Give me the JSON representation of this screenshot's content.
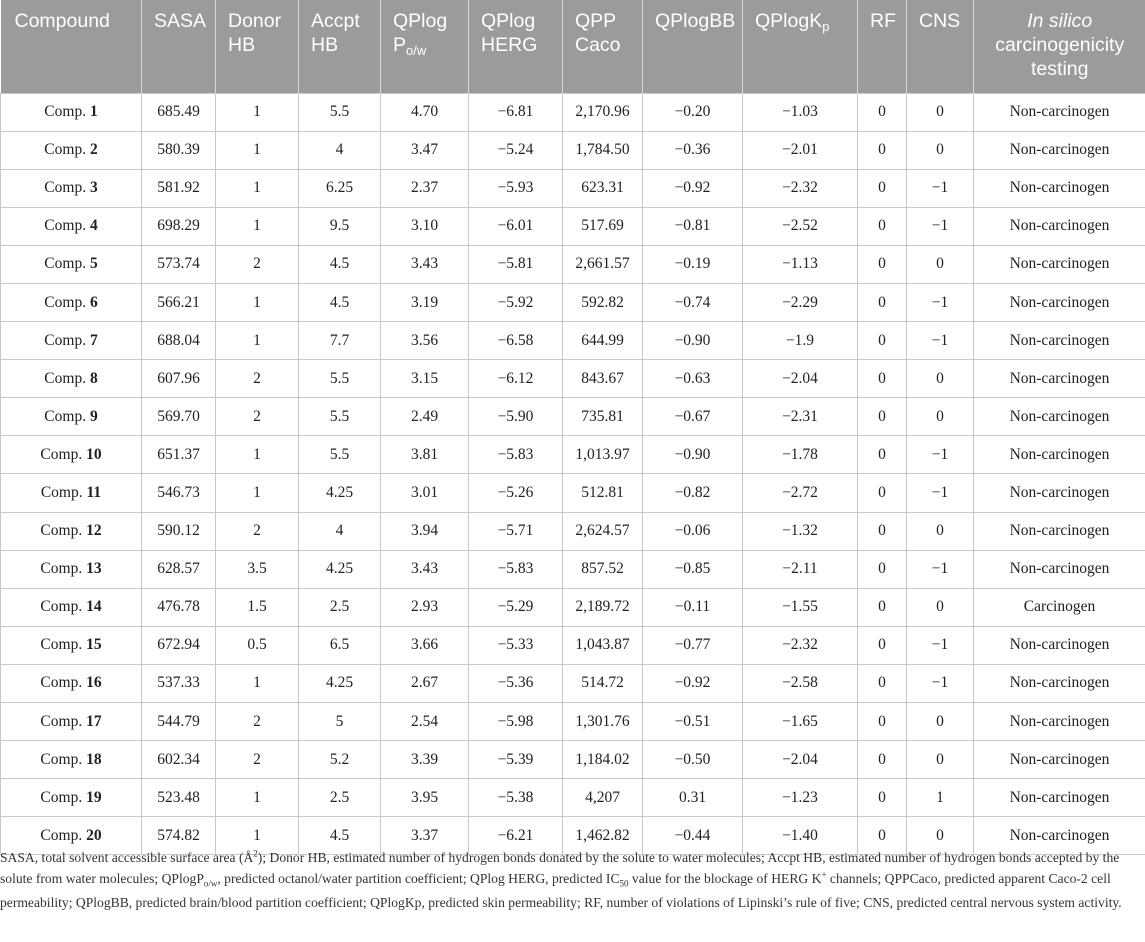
{
  "columns": [
    {
      "line1": "Compound",
      "line2": "",
      "sub": "",
      "after_sub": "",
      "line3": ""
    },
    {
      "line1": "SASA",
      "line2": "",
      "sub": "",
      "after_sub": "",
      "line3": ""
    },
    {
      "line1": "Donor",
      "line2": "HB",
      "sub": "",
      "after_sub": "",
      "line3": ""
    },
    {
      "line1": "Accpt",
      "line2": "HB",
      "sub": "",
      "after_sub": "",
      "line3": ""
    },
    {
      "line1": "QPlog",
      "line2": "P",
      "sub": "o/w",
      "after_sub": "",
      "line3": ""
    },
    {
      "line1": "QPlog",
      "line2": "HERG",
      "sub": "",
      "after_sub": "",
      "line3": ""
    },
    {
      "line1": "QPP",
      "line2": "Caco",
      "sub": "",
      "after_sub": "",
      "line3": ""
    },
    {
      "line1": "QPlogBB",
      "line2": "",
      "sub": "",
      "after_sub": "",
      "line3": ""
    },
    {
      "line1": "QPlogK",
      "line2": "",
      "sub": "p",
      "after_sub": "",
      "line3": ""
    },
    {
      "line1": "RF",
      "line2": "",
      "sub": "",
      "after_sub": "",
      "line3": ""
    },
    {
      "line1": "CNS",
      "line2": "",
      "sub": "",
      "after_sub": "",
      "line3": ""
    },
    {
      "line1": "In silico",
      "line2": "carcinogenicity",
      "sub": "",
      "after_sub": "",
      "line3": "testing"
    }
  ],
  "rows": [
    {
      "prefix": "Comp. ",
      "num": "1",
      "sasa": "685.49",
      "donor": "1",
      "accpt": "5.5",
      "qplogpow": "4.70",
      "qplogherg": "−6.81",
      "qppcaco": "2,170.96",
      "qplogbb": "−0.20",
      "qplogkp": "−1.03",
      "rf": "0",
      "cns": "0",
      "carc": "Non-carcinogen"
    },
    {
      "prefix": "Comp. ",
      "num": "2",
      "sasa": "580.39",
      "donor": "1",
      "accpt": "4",
      "qplogpow": "3.47",
      "qplogherg": "−5.24",
      "qppcaco": "1,784.50",
      "qplogbb": "−0.36",
      "qplogkp": "−2.01",
      "rf": "0",
      "cns": "0",
      "carc": "Non-carcinogen"
    },
    {
      "prefix": "Comp. ",
      "num": "3",
      "sasa": "581.92",
      "donor": "1",
      "accpt": "6.25",
      "qplogpow": "2.37",
      "qplogherg": "−5.93",
      "qppcaco": "623.31",
      "qplogbb": "−0.92",
      "qplogkp": "−2.32",
      "rf": "0",
      "cns": "−1",
      "carc": "Non-carcinogen"
    },
    {
      "prefix": "Comp. ",
      "num": "4",
      "sasa": "698.29",
      "donor": "1",
      "accpt": "9.5",
      "qplogpow": "3.10",
      "qplogherg": "−6.01",
      "qppcaco": "517.69",
      "qplogbb": "−0.81",
      "qplogkp": "−2.52",
      "rf": "0",
      "cns": "−1",
      "carc": "Non-carcinogen"
    },
    {
      "prefix": "Comp. ",
      "num": "5",
      "sasa": "573.74",
      "donor": "2",
      "accpt": "4.5",
      "qplogpow": "3.43",
      "qplogherg": "−5.81",
      "qppcaco": "2,661.57",
      "qplogbb": "−0.19",
      "qplogkp": "−1.13",
      "rf": "0",
      "cns": "0",
      "carc": "Non-carcinogen"
    },
    {
      "prefix": "Comp. ",
      "num": "6",
      "sasa": "566.21",
      "donor": "1",
      "accpt": "4.5",
      "qplogpow": "3.19",
      "qplogherg": "−5.92",
      "qppcaco": "592.82",
      "qplogbb": "−0.74",
      "qplogkp": "−2.29",
      "rf": "0",
      "cns": "−1",
      "carc": "Non-carcinogen"
    },
    {
      "prefix": "Comp. ",
      "num": "7",
      "sasa": "688.04",
      "donor": "1",
      "accpt": "7.7",
      "qplogpow": "3.56",
      "qplogherg": "−6.58",
      "qppcaco": "644.99",
      "qplogbb": "−0.90",
      "qplogkp": "−1.9",
      "rf": "0",
      "cns": "−1",
      "carc": "Non-carcinogen"
    },
    {
      "prefix": "Comp. ",
      "num": "8",
      "sasa": "607.96",
      "donor": "2",
      "accpt": "5.5",
      "qplogpow": "3.15",
      "qplogherg": "−6.12",
      "qppcaco": "843.67",
      "qplogbb": "−0.63",
      "qplogkp": "−2.04",
      "rf": "0",
      "cns": "0",
      "carc": "Non-carcinogen"
    },
    {
      "prefix": "Comp. ",
      "num": "9",
      "sasa": "569.70",
      "donor": "2",
      "accpt": "5.5",
      "qplogpow": "2.49",
      "qplogherg": "−5.90",
      "qppcaco": "735.81",
      "qplogbb": "−0.67",
      "qplogkp": "−2.31",
      "rf": "0",
      "cns": "0",
      "carc": "Non-carcinogen"
    },
    {
      "prefix": "Comp. ",
      "num": "10",
      "sasa": "651.37",
      "donor": "1",
      "accpt": "5.5",
      "qplogpow": "3.81",
      "qplogherg": "−5.83",
      "qppcaco": "1,013.97",
      "qplogbb": "−0.90",
      "qplogkp": "−1.78",
      "rf": "0",
      "cns": "−1",
      "carc": "Non-carcinogen"
    },
    {
      "prefix": "Comp. ",
      "num": "11",
      "sasa": "546.73",
      "donor": "1",
      "accpt": "4.25",
      "qplogpow": "3.01",
      "qplogherg": "−5.26",
      "qppcaco": "512.81",
      "qplogbb": "−0.82",
      "qplogkp": "−2.72",
      "rf": "0",
      "cns": "−1",
      "carc": "Non-carcinogen"
    },
    {
      "prefix": "Comp. ",
      "num": "12",
      "sasa": "590.12",
      "donor": "2",
      "accpt": "4",
      "qplogpow": "3.94",
      "qplogherg": "−5.71",
      "qppcaco": "2,624.57",
      "qplogbb": "−0.06",
      "qplogkp": "−1.32",
      "rf": "0",
      "cns": "0",
      "carc": "Non-carcinogen"
    },
    {
      "prefix": "Comp. ",
      "num": "13",
      "sasa": "628.57",
      "donor": "3.5",
      "accpt": "4.25",
      "qplogpow": "3.43",
      "qplogherg": "−5.83",
      "qppcaco": "857.52",
      "qplogbb": "−0.85",
      "qplogkp": "−2.11",
      "rf": "0",
      "cns": "−1",
      "carc": "Non-carcinogen"
    },
    {
      "prefix": "Comp. ",
      "num": "14",
      "sasa": "476.78",
      "donor": "1.5",
      "accpt": "2.5",
      "qplogpow": "2.93",
      "qplogherg": "−5.29",
      "qppcaco": "2,189.72",
      "qplogbb": "−0.11",
      "qplogkp": "−1.55",
      "rf": "0",
      "cns": "0",
      "carc": "Carcinogen"
    },
    {
      "prefix": "Comp. ",
      "num": "15",
      "sasa": "672.94",
      "donor": "0.5",
      "accpt": "6.5",
      "qplogpow": "3.66",
      "qplogherg": "−5.33",
      "qppcaco": "1,043.87",
      "qplogbb": "−0.77",
      "qplogkp": "−2.32",
      "rf": "0",
      "cns": "−1",
      "carc": "Non-carcinogen"
    },
    {
      "prefix": "Comp. ",
      "num": "16",
      "sasa": "537.33",
      "donor": "1",
      "accpt": "4.25",
      "qplogpow": "2.67",
      "qplogherg": "−5.36",
      "qppcaco": "514.72",
      "qplogbb": "−0.92",
      "qplogkp": "−2.58",
      "rf": "0",
      "cns": "−1",
      "carc": "Non-carcinogen"
    },
    {
      "prefix": "Comp. ",
      "num": "17",
      "sasa": "544.79",
      "donor": "2",
      "accpt": "5",
      "qplogpow": "2.54",
      "qplogherg": "−5.98",
      "qppcaco": "1,301.76",
      "qplogbb": "−0.51",
      "qplogkp": "−1.65",
      "rf": "0",
      "cns": "0",
      "carc": "Non-carcinogen"
    },
    {
      "prefix": "Comp. ",
      "num": "18",
      "sasa": "602.34",
      "donor": "2",
      "accpt": "5.2",
      "qplogpow": "3.39",
      "qplogherg": "−5.39",
      "qppcaco": "1,184.02",
      "qplogbb": "−0.50",
      "qplogkp": "−2.04",
      "rf": "0",
      "cns": "0",
      "carc": "Non-carcinogen"
    },
    {
      "prefix": "Comp. ",
      "num": "19",
      "sasa": "523.48",
      "donor": "1",
      "accpt": "2.5",
      "qplogpow": "3.95",
      "qplogherg": "−5.38",
      "qppcaco": "4,207",
      "qplogbb": "0.31",
      "qplogkp": "−1.23",
      "rf": "0",
      "cns": "1",
      "carc": "Non-carcinogen"
    },
    {
      "prefix": "Comp. ",
      "num": "20",
      "sasa": "574.82",
      "donor": "1",
      "accpt": "4.5",
      "qplogpow": "3.37",
      "qplogherg": "−6.21",
      "qppcaco": "1,462.82",
      "qplogbb": "−0.44",
      "qplogkp": "−1.40",
      "rf": "0",
      "cns": "0",
      "carc": "Non-carcinogen"
    }
  ],
  "footnote": {
    "part1": "SASA, total solvent accessible surface area (Å",
    "sup1": "2",
    "part2": "); Donor HB, estimated number of hydrogen bonds donated by the solute to water molecules; Accpt HB, estimated number of hydrogen bonds accepted by the solute from water molecules; QPlogP",
    "sub1": "o/w",
    "part3": ", predicted octanol/water partition coefficient; QPlog HERG, predicted IC",
    "sub2": "50",
    "part4": " value for the blockage of HERG K",
    "sup2": "+",
    "part5": " channels; QPPCaco, predicted apparent Caco-2 cell permeability; QPlogBB, predicted brain/blood partition coefficient; QPlogKp, predicted skin permeability; RF, number of violations of Lipinski’s rule of five; CNS, predicted central nervous system activity."
  }
}
